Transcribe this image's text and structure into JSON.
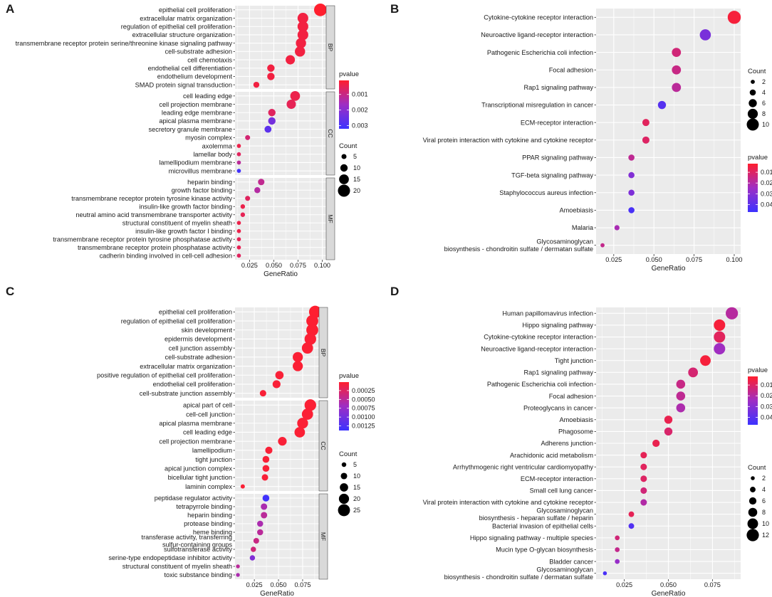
{
  "colors": {
    "high": "#ff1f2e",
    "mid": "#9e2ec4",
    "low": "#3c32ff",
    "panel_bg": "#ebebeb",
    "grid": "#ffffff",
    "strip": "#d9d9d9"
  },
  "labels": {
    "pvalue": "pvalue",
    "count": "Count",
    "gene_ratio": "GeneRatio"
  },
  "chart_data": [
    {
      "type": "scatter",
      "panel": "A",
      "xlabel": "GeneRatio",
      "xlim": [
        0.01,
        0.104
      ],
      "xticks": [
        0.025,
        0.05,
        0.075,
        0.1
      ],
      "xtick_labels": [
        "0.025",
        "0.050",
        "0.075",
        "0.100"
      ],
      "pvalue_range": [
        0.0001,
        0.0032
      ],
      "pvalue_ticks": [
        0.001,
        0.002,
        0.003
      ],
      "pvalue_tick_labels": [
        "0.001",
        "0.002",
        "0.003"
      ],
      "count_range": [
        1,
        22
      ],
      "count_ticks": [
        5,
        10,
        15,
        20
      ],
      "count_tick_labels": [
        "5",
        "10",
        "15",
        "20"
      ],
      "facets": [
        {
          "name": "BP",
          "terms": [
            {
              "term": "epithelial cell proliferation",
              "x": 0.098,
              "count": 21,
              "p": 0.0001
            },
            {
              "term": "extracellular matrix organization",
              "x": 0.08,
              "count": 17,
              "p": 0.0003
            },
            {
              "term": "regulation of epithelial cell proliferation",
              "x": 0.08,
              "count": 17,
              "p": 0.0003
            },
            {
              "term": "extracellular structure organization",
              "x": 0.08,
              "count": 17,
              "p": 0.0003
            },
            {
              "term": "transmembrane receptor protein serine/threonine kinase signaling pathway",
              "x": 0.078,
              "count": 16,
              "p": 0.0003
            },
            {
              "term": "cell-substrate adhesion",
              "x": 0.077,
              "count": 16,
              "p": 0.0003
            },
            {
              "term": "cell chemotaxis",
              "x": 0.067,
              "count": 14,
              "p": 0.0003
            },
            {
              "term": "endothelial cell differentiation",
              "x": 0.047,
              "count": 10,
              "p": 0.0003
            },
            {
              "term": "endothelium development",
              "x": 0.047,
              "count": 10,
              "p": 0.0003
            },
            {
              "term": "SMAD protein signal transduction",
              "x": 0.032,
              "count": 7,
              "p": 0.0003
            }
          ]
        },
        {
          "name": "CC",
          "terms": [
            {
              "term": "cell leading edge",
              "x": 0.072,
              "count": 15,
              "p": 0.0004
            },
            {
              "term": "cell projection membrane",
              "x": 0.068,
              "count": 14,
              "p": 0.0005
            },
            {
              "term": "leading edge membrane",
              "x": 0.048,
              "count": 10,
              "p": 0.0006
            },
            {
              "term": "apical plasma membrane",
              "x": 0.048,
              "count": 10,
              "p": 0.0023
            },
            {
              "term": "secretory granule membrane",
              "x": 0.044,
              "count": 9,
              "p": 0.0027
            },
            {
              "term": "myosin complex",
              "x": 0.023,
              "count": 5,
              "p": 0.0008
            },
            {
              "term": "axolemma",
              "x": 0.014,
              "count": 3,
              "p": 0.0004
            },
            {
              "term": "lamellar body",
              "x": 0.014,
              "count": 3,
              "p": 0.0006
            },
            {
              "term": "lamellipodium membrane",
              "x": 0.014,
              "count": 3,
              "p": 0.0012
            },
            {
              "term": "microvillus membrane",
              "x": 0.014,
              "count": 3,
              "p": 0.0031
            }
          ]
        },
        {
          "name": "MF",
          "terms": [
            {
              "term": "heparin binding",
              "x": 0.037,
              "count": 8,
              "p": 0.0011
            },
            {
              "term": "growth factor binding",
              "x": 0.033,
              "count": 7,
              "p": 0.0013
            },
            {
              "term": "transmembrane receptor protein tyrosine kinase activity",
              "x": 0.023,
              "count": 5,
              "p": 0.0006
            },
            {
              "term": "insulin-like growth factor binding",
              "x": 0.018,
              "count": 4,
              "p": 0.0004
            },
            {
              "term": "neutral amino acid transmembrane transporter activity",
              "x": 0.018,
              "count": 4,
              "p": 0.0005
            },
            {
              "term": "structural constituent of myelin sheath",
              "x": 0.014,
              "count": 3,
              "p": 0.0004
            },
            {
              "term": "insulin-like growth factor I binding",
              "x": 0.014,
              "count": 3,
              "p": 0.0004
            },
            {
              "term": "transmembrane receptor protein tyrosine phosphatase activity",
              "x": 0.014,
              "count": 3,
              "p": 0.0005
            },
            {
              "term": "transmembrane receptor protein phosphatase activity",
              "x": 0.014,
              "count": 3,
              "p": 0.0005
            },
            {
              "term": "cadherin binding involved in cell-cell adhesion",
              "x": 0.014,
              "count": 3,
              "p": 0.0006
            }
          ]
        }
      ]
    },
    {
      "type": "scatter",
      "panel": "B",
      "xlabel": "GeneRatio",
      "xlim": [
        0.014,
        0.104
      ],
      "xticks": [
        0.025,
        0.05,
        0.075,
        0.1
      ],
      "xtick_labels": [
        "0.025",
        "0.050",
        "0.075",
        "0.100"
      ],
      "pvalue_range": [
        0.002,
        0.047
      ],
      "pvalue_ticks": [
        0.01,
        0.02,
        0.03,
        0.04
      ],
      "pvalue_tick_labels": [
        "0.01",
        "0.02",
        "0.03",
        "0.04"
      ],
      "count_range": [
        1,
        11
      ],
      "count_ticks": [
        2,
        4,
        6,
        8,
        10
      ],
      "count_tick_labels": [
        "2",
        "4",
        "6",
        "8",
        "10"
      ],
      "facets": [
        {
          "name": "",
          "terms": [
            {
              "term": "Cytokine-cytokine receptor interaction",
              "x": 0.1,
              "count": 11,
              "p": 0.004
            },
            {
              "term": "Neuroactive ligand-receptor interaction",
              "x": 0.082,
              "count": 9,
              "p": 0.033
            },
            {
              "term": "Pathogenic Escherichia coli infection",
              "x": 0.064,
              "count": 7,
              "p": 0.013
            },
            {
              "term": "Focal adhesion",
              "x": 0.064,
              "count": 7,
              "p": 0.015
            },
            {
              "term": "Rap1 signaling pathway",
              "x": 0.064,
              "count": 7,
              "p": 0.018
            },
            {
              "term": "Transcriptional misregulation in cancer",
              "x": 0.055,
              "count": 6,
              "p": 0.041
            },
            {
              "term": "ECM-receptor interaction",
              "x": 0.045,
              "count": 5,
              "p": 0.009
            },
            {
              "term": "Viral protein interaction with cytokine and cytokine receptor",
              "x": 0.045,
              "count": 5,
              "p": 0.01
            },
            {
              "term": "PPAR signaling pathway",
              "x": 0.036,
              "count": 4,
              "p": 0.017
            },
            {
              "term": "TGF-beta signaling pathway",
              "x": 0.036,
              "count": 4,
              "p": 0.031
            },
            {
              "term": "Staphylococcus aureus infection",
              "x": 0.036,
              "count": 4,
              "p": 0.032
            },
            {
              "term": "Amoebiasis",
              "x": 0.036,
              "count": 4,
              "p": 0.044
            },
            {
              "term": "Malaria",
              "x": 0.027,
              "count": 3,
              "p": 0.022
            },
            {
              "term": "Glycosaminoglycan\nbiosynthesis - chondroitin sulfate / dermatan sulfate",
              "x": 0.018,
              "count": 2,
              "p": 0.016
            }
          ]
        }
      ]
    },
    {
      "type": "scatter",
      "panel": "C",
      "xlabel": "GeneRatio",
      "xlim": [
        0.005,
        0.092
      ],
      "xticks": [
        0.025,
        0.05,
        0.075
      ],
      "xtick_labels": [
        "0.025",
        "0.050",
        "0.075"
      ],
      "pvalue_range": [
        1e-05,
        0.00138
      ],
      "pvalue_ticks": [
        0.00025,
        0.0005,
        0.00075,
        0.001,
        0.00125
      ],
      "pvalue_tick_labels": [
        "0.00025",
        "0.00050",
        "0.00075",
        "0.00100",
        "0.00125"
      ],
      "count_range": [
        1,
        28
      ],
      "count_ticks": [
        5,
        10,
        15,
        20,
        25
      ],
      "count_tick_labels": [
        "5",
        "10",
        "15",
        "20",
        "25"
      ],
      "facets": [
        {
          "name": "BP",
          "terms": [
            {
              "term": "epithelial cell proliferation",
              "x": 0.088,
              "count": 26,
              "p": 2e-05
            },
            {
              "term": "regulation of epithelial cell proliferation",
              "x": 0.085,
              "count": 25,
              "p": 3e-05
            },
            {
              "term": "skin development",
              "x": 0.085,
              "count": 25,
              "p": 3e-05
            },
            {
              "term": "epidermis development",
              "x": 0.083,
              "count": 24,
              "p": 4e-05
            },
            {
              "term": "cell junction assembly",
              "x": 0.08,
              "count": 23,
              "p": 4e-05
            },
            {
              "term": "cell-substrate adhesion",
              "x": 0.07,
              "count": 20,
              "p": 4e-05
            },
            {
              "term": "extracellular matrix organization",
              "x": 0.07,
              "count": 20,
              "p": 4e-05
            },
            {
              "term": "positive regulation of epithelial cell proliferation",
              "x": 0.051,
              "count": 15,
              "p": 5e-05
            },
            {
              "term": "endothelial cell proliferation",
              "x": 0.048,
              "count": 14,
              "p": 5e-05
            },
            {
              "term": "cell-substrate junction assembly",
              "x": 0.034,
              "count": 10,
              "p": 5e-05
            }
          ]
        },
        {
          "name": "CC",
          "terms": [
            {
              "term": "apical part of cell",
              "x": 0.083,
              "count": 24,
              "p": 4e-05
            },
            {
              "term": "cell-cell junction",
              "x": 0.08,
              "count": 23,
              "p": 4e-05
            },
            {
              "term": "apical plasma membrane",
              "x": 0.075,
              "count": 22,
              "p": 4e-05
            },
            {
              "term": "cell leading edge",
              "x": 0.072,
              "count": 21,
              "p": 4e-05
            },
            {
              "term": "cell projection membrane",
              "x": 0.054,
              "count": 16,
              "p": 5e-05
            },
            {
              "term": "lamellipodium",
              "x": 0.04,
              "count": 12,
              "p": 5e-05
            },
            {
              "term": "tight junction",
              "x": 0.037,
              "count": 11,
              "p": 5e-05
            },
            {
              "term": "apical junction complex",
              "x": 0.037,
              "count": 11,
              "p": 5e-05
            },
            {
              "term": "bicellular tight junction",
              "x": 0.036,
              "count": 10,
              "p": 5e-05
            },
            {
              "term": "laminin complex",
              "x": 0.013,
              "count": 4,
              "p": 4e-05
            }
          ]
        },
        {
          "name": "MF",
          "terms": [
            {
              "term": "peptidase regulator activity",
              "x": 0.037,
              "count": 11,
              "p": 0.00135
            },
            {
              "term": "tetrapyrrole binding",
              "x": 0.035,
              "count": 10,
              "p": 0.0006
            },
            {
              "term": "heparin binding",
              "x": 0.035,
              "count": 10,
              "p": 0.0005
            },
            {
              "term": "protease binding",
              "x": 0.031,
              "count": 9,
              "p": 0.0006
            },
            {
              "term": "heme binding",
              "x": 0.031,
              "count": 9,
              "p": 0.0005
            },
            {
              "term": "transferase activity, transferring\nsulfur-containing groups",
              "x": 0.027,
              "count": 8,
              "p": 0.0004
            },
            {
              "term": "sulfotransferase activity",
              "x": 0.024,
              "count": 7,
              "p": 0.00035
            },
            {
              "term": "serine-type endopeptidase inhibitor activity",
              "x": 0.023,
              "count": 7,
              "p": 0.0009
            },
            {
              "term": "structural constituent of myelin sheath",
              "x": 0.008,
              "count": 3,
              "p": 0.0005
            },
            {
              "term": "toxic substance binding",
              "x": 0.008,
              "count": 3,
              "p": 0.0006
            }
          ]
        }
      ]
    },
    {
      "type": "scatter",
      "panel": "D",
      "xlabel": "GeneRatio",
      "xlim": [
        0.009,
        0.091
      ],
      "xticks": [
        0.025,
        0.05,
        0.075
      ],
      "xtick_labels": [
        "0.025",
        "0.050",
        "0.075"
      ],
      "pvalue_range": [
        0.002,
        0.047
      ],
      "pvalue_ticks": [
        0.01,
        0.02,
        0.03,
        0.04
      ],
      "pvalue_tick_labels": [
        "0.01",
        "0.02",
        "0.03",
        "0.04"
      ],
      "count_range": [
        1,
        13
      ],
      "count_ticks": [
        2,
        4,
        6,
        8,
        10,
        12
      ],
      "count_tick_labels": [
        "2",
        "4",
        "6",
        "8",
        "10",
        "12"
      ],
      "facets": [
        {
          "name": "",
          "terms": [
            {
              "term": "Human papillomavirus infection",
              "x": 0.086,
              "count": 12,
              "p": 0.019
            },
            {
              "term": "Hippo signaling pathway",
              "x": 0.079,
              "count": 11,
              "p": 0.004
            },
            {
              "term": "Cytokine-cytokine receptor interaction",
              "x": 0.079,
              "count": 11,
              "p": 0.009
            },
            {
              "term": "Neuroactive ligand-receptor interaction",
              "x": 0.079,
              "count": 11,
              "p": 0.024
            },
            {
              "term": "Tight junction",
              "x": 0.071,
              "count": 10,
              "p": 0.004
            },
            {
              "term": "Rap1 signaling pathway",
              "x": 0.064,
              "count": 9,
              "p": 0.012
            },
            {
              "term": "Pathogenic Escherichia coli infection",
              "x": 0.057,
              "count": 8,
              "p": 0.015
            },
            {
              "term": "Focal adhesion",
              "x": 0.057,
              "count": 8,
              "p": 0.017
            },
            {
              "term": "Proteoglycans in cancer",
              "x": 0.057,
              "count": 8,
              "p": 0.021
            },
            {
              "term": "Amoebiasis",
              "x": 0.05,
              "count": 7,
              "p": 0.007
            },
            {
              "term": "Phagosome",
              "x": 0.05,
              "count": 7,
              "p": 0.011
            },
            {
              "term": "Adherens junction",
              "x": 0.043,
              "count": 6,
              "p": 0.007
            },
            {
              "term": "Arachidonic acid metabolism",
              "x": 0.036,
              "count": 5,
              "p": 0.008
            },
            {
              "term": "Arrhythmogenic right ventricular cardiomyopathy",
              "x": 0.036,
              "count": 5,
              "p": 0.009
            },
            {
              "term": "ECM-receptor interaction",
              "x": 0.036,
              "count": 5,
              "p": 0.01
            },
            {
              "term": "Small cell lung cancer",
              "x": 0.036,
              "count": 5,
              "p": 0.013
            },
            {
              "term": "Viral protein interaction with cytokine and cytokine receptor",
              "x": 0.036,
              "count": 5,
              "p": 0.02
            },
            {
              "term": "Glycosaminoglycan\nbiosynthesis - heparan sulfate / heparin",
              "x": 0.029,
              "count": 4,
              "p": 0.008
            },
            {
              "term": "Bacterial invasion of epithelial cells",
              "x": 0.029,
              "count": 4,
              "p": 0.042
            },
            {
              "term": "Hippo signaling pathway - multiple species",
              "x": 0.021,
              "count": 3,
              "p": 0.013
            },
            {
              "term": "Mucin type O-glycan biosynthesis",
              "x": 0.021,
              "count": 3,
              "p": 0.016
            },
            {
              "term": "Bladder cancer",
              "x": 0.021,
              "count": 3,
              "p": 0.026
            },
            {
              "term": "Glycosaminoglycan\nbiosynthesis - chondroitin sulfate / dermatan sulfate",
              "x": 0.014,
              "count": 2,
              "p": 0.044
            }
          ]
        }
      ]
    }
  ]
}
